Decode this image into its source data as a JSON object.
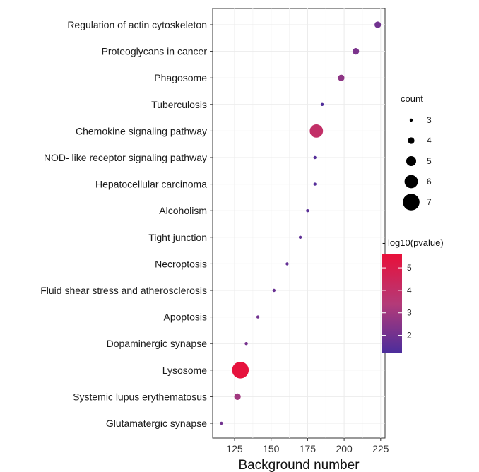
{
  "chart_data": {
    "type": "scatter",
    "xlabel": "Background number",
    "ylabel": "",
    "xlim": [
      110,
      228
    ],
    "x_ticks": [
      125,
      150,
      175,
      200,
      225
    ],
    "grid": true,
    "legend_placement": "right",
    "categories": [
      "Regulation of actin cytoskeleton",
      "Proteoglycans in cancer",
      "Phagosome",
      "Tuberculosis",
      "Chemokine signaling pathway",
      "NOD- like receptor signaling pathway",
      "Hepatocellular carcinoma",
      "Alcoholism",
      "Tight junction",
      "Necroptosis",
      "Fluid shear stress and atherosclerosis",
      "Apoptosis",
      "Dopaminergic synapse",
      "Lysosome",
      "Systemic lupus erythematosus",
      "Glutamatergic synapse"
    ],
    "points": [
      {
        "term": "Regulation of actin cytoskeleton",
        "x": 223,
        "count": 4,
        "neg_log10_p": 2.0
      },
      {
        "term": "Proteoglycans in cancer",
        "x": 208,
        "count": 4,
        "neg_log10_p": 2.2
      },
      {
        "term": "Phagosome",
        "x": 198,
        "count": 4,
        "neg_log10_p": 2.6
      },
      {
        "term": "Tuberculosis",
        "x": 185,
        "count": 3,
        "neg_log10_p": 1.3
      },
      {
        "term": "Chemokine signaling pathway",
        "x": 181,
        "count": 6,
        "neg_log10_p": 4.0
      },
      {
        "term": "NOD- like receptor signaling pathway",
        "x": 180,
        "count": 3,
        "neg_log10_p": 1.4
      },
      {
        "term": "Hepatocellular carcinoma",
        "x": 180,
        "count": 3,
        "neg_log10_p": 1.4
      },
      {
        "term": "Alcoholism",
        "x": 175,
        "count": 3,
        "neg_log10_p": 1.5
      },
      {
        "term": "Tight junction",
        "x": 170,
        "count": 3,
        "neg_log10_p": 1.6
      },
      {
        "term": "Necroptosis",
        "x": 161,
        "count": 3,
        "neg_log10_p": 1.7
      },
      {
        "term": "Fluid shear stress and atherosclerosis",
        "x": 152,
        "count": 3,
        "neg_log10_p": 1.8
      },
      {
        "term": "Apoptosis",
        "x": 141,
        "count": 3,
        "neg_log10_p": 2.0
      },
      {
        "term": "Dopaminergic synapse",
        "x": 133,
        "count": 3,
        "neg_log10_p": 2.1
      },
      {
        "term": "Lysosome",
        "x": 129,
        "count": 7,
        "neg_log10_p": 5.5
      },
      {
        "term": "Systemic lupus erythematosus",
        "x": 127,
        "count": 4,
        "neg_log10_p": 3.0
      },
      {
        "term": "Glutamatergic synapse",
        "x": 116,
        "count": 3,
        "neg_log10_p": 2.0
      }
    ],
    "size_legend": {
      "title": "count",
      "values": [
        3,
        4,
        5,
        6,
        7
      ]
    },
    "color_legend": {
      "title": "- log10(pvalue)",
      "ticks": [
        2,
        3,
        4,
        5
      ],
      "tick_labels": [
        "2",
        "3",
        "4",
        "5"
      ],
      "range": [
        1.2,
        5.6
      ],
      "low_color": "#4b2d9c",
      "mid_color": "#b43a78",
      "high_color": "#e8103a"
    }
  }
}
